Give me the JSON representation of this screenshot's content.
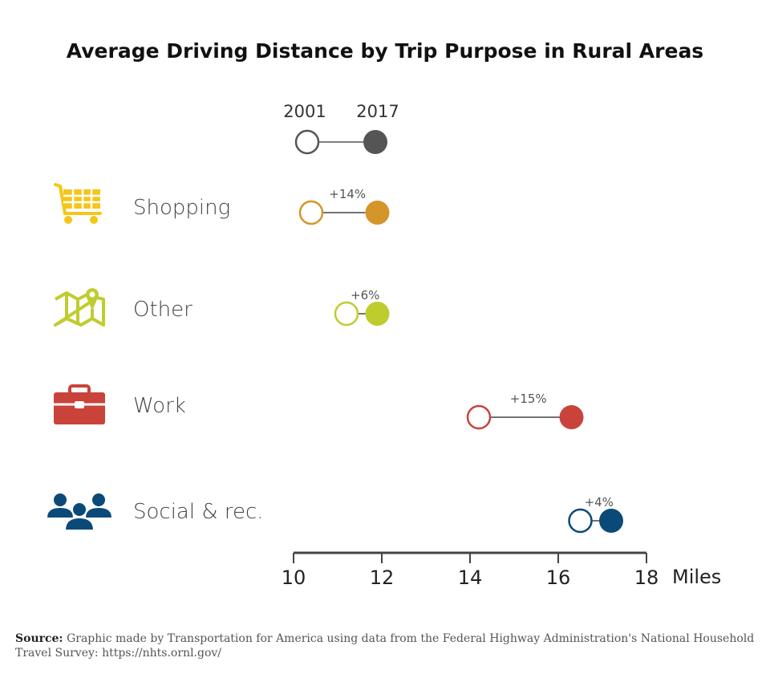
{
  "chart_data": {
    "type": "dumbbell",
    "title": "Average Driving Distance by Trip Purpose in Rural Areas",
    "xlabel": "Miles",
    "xlim": [
      10,
      18
    ],
    "xticks": [
      "10",
      "12",
      "14",
      "16",
      "18"
    ],
    "legend": {
      "placement": "top",
      "start_label": "2001",
      "end_label": "2017",
      "color": "#555555"
    },
    "categories": [
      {
        "name": "Shopping",
        "icon": "shopping-cart-icon",
        "color": "#D4962A",
        "icon_color": "#F5C518",
        "v2001": 10.4,
        "v2017": 11.9,
        "change": "+14%"
      },
      {
        "name": "Other",
        "icon": "map-pin-icon",
        "color": "#BFCC2E",
        "icon_color": "#BFCC2E",
        "v2001": 11.2,
        "v2017": 11.9,
        "change": "+6%"
      },
      {
        "name": "Work",
        "icon": "briefcase-icon",
        "color": "#C9433A",
        "icon_color": "#C9433A",
        "v2001": 14.2,
        "v2017": 16.3,
        "change": "+15%"
      },
      {
        "name": "Social & rec.",
        "icon": "people-group-icon",
        "color": "#0B4A78",
        "icon_color": "#0B4A78",
        "v2001": 16.5,
        "v2017": 17.2,
        "change": "+4%"
      }
    ]
  },
  "source": {
    "label": "Source:",
    "text": "Graphic made by Transportation for America using data from the Federal Highway Administration's National Household Travel Survey: https://nhts.ornl.gov/"
  }
}
